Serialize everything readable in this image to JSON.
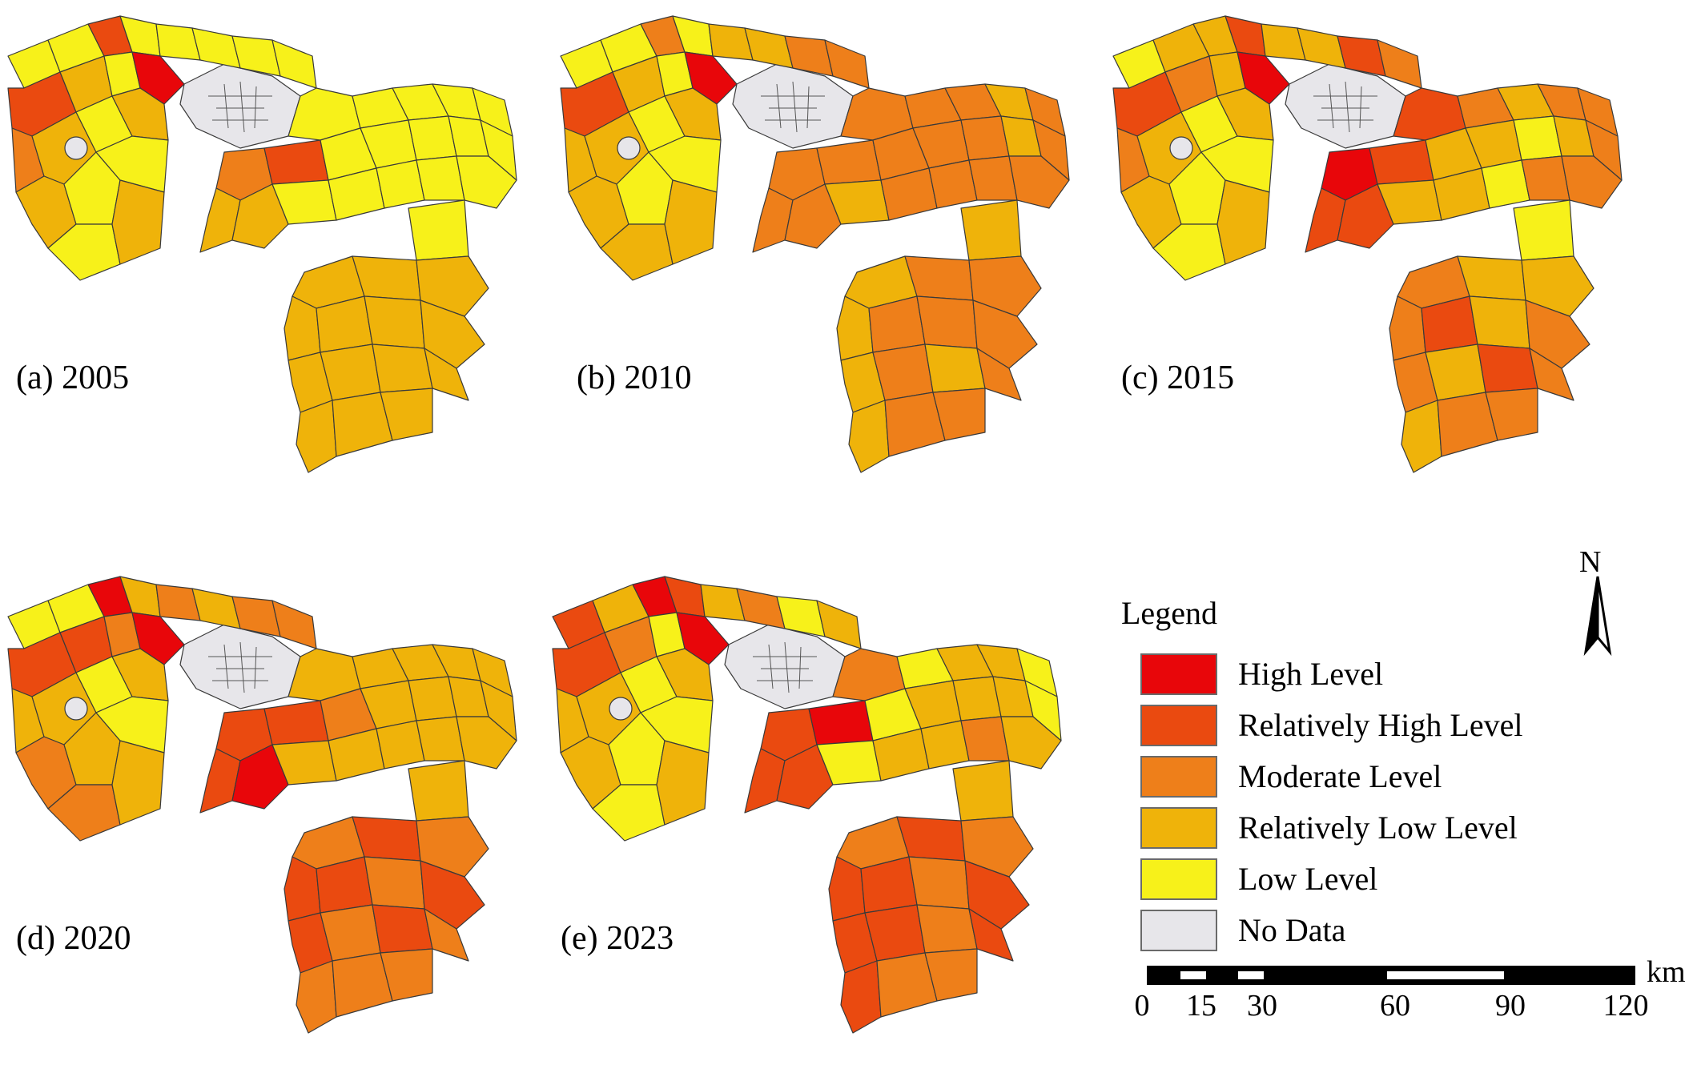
{
  "colors": {
    "high": "#e8060a",
    "relatively_high": "#ea4a10",
    "moderate": "#ee7f1a",
    "relatively_low": "#efb30a",
    "low": "#f7f11a",
    "no_data": "#e7e6ea",
    "border": "#3a3a3a"
  },
  "panels": [
    {
      "label": "(a) 2005",
      "year": "2005"
    },
    {
      "label": "(b) 2010",
      "year": "2010"
    },
    {
      "label": "(c) 2015",
      "year": "2015"
    },
    {
      "label": "(d) 2020",
      "year": "2020"
    },
    {
      "label": "(e) 2023",
      "year": "2023"
    }
  ],
  "legend": {
    "title": "Legend",
    "items": [
      {
        "label": "High Level",
        "color": "#e8060a"
      },
      {
        "label": "Relatively High Level",
        "color": "#ea4a10"
      },
      {
        "label": "Moderate Level",
        "color": "#ee7f1a"
      },
      {
        "label": "Relatively Low Level",
        "color": "#efb30a"
      },
      {
        "label": "Low Level",
        "color": "#f7f11a"
      },
      {
        "label": "No Data",
        "color": "#e7e6ea"
      }
    ]
  },
  "north_arrow": {
    "letter": "N",
    "icon": "north-arrow-icon"
  },
  "scale_bar": {
    "unit": "km",
    "ticks": [
      "0",
      "15",
      "30",
      "60",
      "90",
      "120"
    ]
  }
}
